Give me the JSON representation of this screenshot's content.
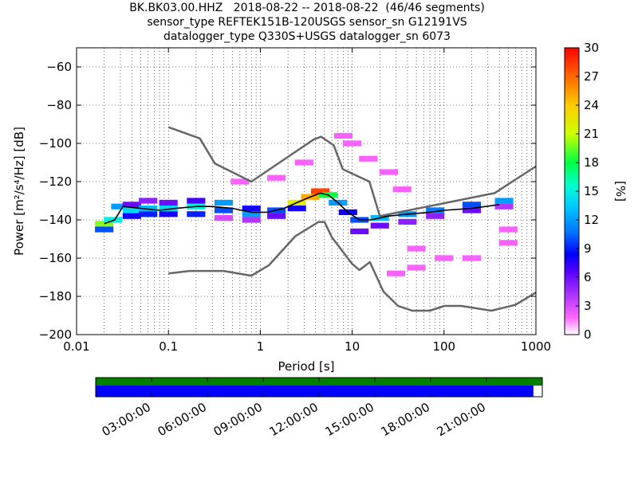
{
  "title": {
    "line1": "BK.BK03.00.HHZ   2018-08-22 -- 2018-08-22  (46/46 segments)",
    "line2": "sensor_type REFTEK151B-120USGS sensor_sn G12191VS",
    "line3": "datalogger_type Q330S+USGS datalogger_sn 6073"
  },
  "colors": {
    "noise_model": "#666666",
    "mean_line": "#000000",
    "timeline_top": "#008000",
    "timeline_bottom": "#0000ff",
    "grid": "#000000"
  },
  "chart_data": {
    "type": "heatmap",
    "xlabel": "Period [s]",
    "ylabel": "Power [m²/s⁴/Hz] [dB]",
    "xscale": "log",
    "xlim": [
      0.01,
      1000
    ],
    "ylim": [
      -200,
      -50
    ],
    "x_ticks": [
      0.01,
      0.1,
      1,
      10,
      100,
      1000
    ],
    "x_tick_labels": [
      "0.01",
      "0.1",
      "1",
      "10",
      "100",
      "1000"
    ],
    "y_ticks": [
      -200,
      -180,
      -160,
      -140,
      -120,
      -100,
      -80,
      -60
    ],
    "y_tick_labels": [
      "−200",
      "−180",
      "−160",
      "−140",
      "−120",
      "−100",
      "−80",
      "−60"
    ],
    "grid": true,
    "colorbar": {
      "label": "[%]",
      "range": [
        0,
        30
      ],
      "ticks": [
        0,
        3,
        6,
        9,
        12,
        15,
        18,
        21,
        24,
        27,
        30
      ],
      "colormap": "pqlx"
    },
    "noise_models": [
      {
        "name": "NHNM",
        "points": [
          [
            0.1,
            -91.5
          ],
          [
            0.22,
            -97.4
          ],
          [
            0.32,
            -110.5
          ],
          [
            0.8,
            -120
          ],
          [
            3.8,
            -98
          ],
          [
            4.6,
            -96.5
          ],
          [
            6.3,
            -101
          ],
          [
            7.9,
            -113.5
          ],
          [
            15.4,
            -120
          ],
          [
            20,
            -138
          ],
          [
            354.8,
            -126
          ],
          [
            1000,
            -112
          ]
        ]
      },
      {
        "name": "NLNM",
        "points": [
          [
            0.1,
            -168
          ],
          [
            0.17,
            -166.7
          ],
          [
            0.4,
            -166.7
          ],
          [
            0.8,
            -169.2
          ],
          [
            1.24,
            -163.7
          ],
          [
            2.4,
            -148.6
          ],
          [
            4.3,
            -141.1
          ],
          [
            5,
            -141.1
          ],
          [
            6,
            -149
          ],
          [
            10,
            -163
          ],
          [
            12,
            -166.2
          ],
          [
            15.6,
            -162.1
          ],
          [
            21.9,
            -177.5
          ],
          [
            31.6,
            -185
          ],
          [
            45,
            -187.5
          ],
          [
            70,
            -187.5
          ],
          [
            101,
            -185
          ],
          [
            154,
            -185
          ],
          [
            328,
            -187.5
          ],
          [
            600,
            -184.4
          ],
          [
            1000,
            -178
          ]
        ]
      }
    ],
    "mean_curve": [
      [
        0.02,
        -142
      ],
      [
        0.026,
        -140
      ],
      [
        0.032,
        -133
      ],
      [
        0.05,
        -134
      ],
      [
        0.08,
        -135
      ],
      [
        0.12,
        -134
      ],
      [
        0.2,
        -133
      ],
      [
        0.3,
        -133
      ],
      [
        0.5,
        -134
      ],
      [
        0.8,
        -136
      ],
      [
        1.2,
        -136
      ],
      [
        1.8,
        -134
      ],
      [
        2.5,
        -131
      ],
      [
        3.5,
        -128
      ],
      [
        4.5,
        -126
      ],
      [
        5.5,
        -127
      ],
      [
        7,
        -131
      ],
      [
        9,
        -136
      ],
      [
        12,
        -140
      ],
      [
        16,
        -140
      ],
      [
        25,
        -138
      ],
      [
        40,
        -137
      ],
      [
        70,
        -136
      ],
      [
        100,
        -135
      ],
      [
        200,
        -134
      ],
      [
        400,
        -132
      ]
    ],
    "percent_occurrence": [
      {
        "period": 0.02,
        "db": -142,
        "percent": 20
      },
      {
        "period": 0.02,
        "db": -145,
        "percent": 10
      },
      {
        "period": 0.025,
        "db": -140,
        "percent": 15
      },
      {
        "period": 0.03,
        "db": -133,
        "percent": 12
      },
      {
        "period": 0.04,
        "db": -132,
        "percent": 6
      },
      {
        "period": 0.04,
        "db": -135,
        "percent": 14
      },
      {
        "period": 0.04,
        "db": -138,
        "percent": 8
      },
      {
        "period": 0.06,
        "db": -130,
        "percent": 5
      },
      {
        "period": 0.06,
        "db": -134,
        "percent": 13
      },
      {
        "period": 0.06,
        "db": -137,
        "percent": 9
      },
      {
        "period": 0.1,
        "db": -131,
        "percent": 6
      },
      {
        "period": 0.1,
        "db": -134,
        "percent": 14
      },
      {
        "period": 0.1,
        "db": -137,
        "percent": 8
      },
      {
        "period": 0.2,
        "db": -130,
        "percent": 7
      },
      {
        "period": 0.2,
        "db": -133,
        "percent": 15
      },
      {
        "period": 0.2,
        "db": -137,
        "percent": 9
      },
      {
        "period": 0.4,
        "db": -131,
        "percent": 12
      },
      {
        "period": 0.4,
        "db": -135,
        "percent": 10
      },
      {
        "period": 0.4,
        "db": -139,
        "percent": 3
      },
      {
        "period": 0.8,
        "db": -134,
        "percent": 8
      },
      {
        "period": 0.8,
        "db": -137,
        "percent": 12
      },
      {
        "period": 0.8,
        "db": -140,
        "percent": 4
      },
      {
        "period": 1.5,
        "db": -135,
        "percent": 10
      },
      {
        "period": 1.5,
        "db": -138,
        "percent": 6
      },
      {
        "period": 2.5,
        "db": -131,
        "percent": 22
      },
      {
        "period": 2.5,
        "db": -134,
        "percent": 8
      },
      {
        "period": 3.5,
        "db": -128,
        "percent": 25
      },
      {
        "period": 4.5,
        "db": -125,
        "percent": 28
      },
      {
        "period": 5.5,
        "db": -127,
        "percent": 18
      },
      {
        "period": 7,
        "db": -131,
        "percent": 12
      },
      {
        "period": 9,
        "db": -136,
        "percent": 8
      },
      {
        "period": 12,
        "db": -140,
        "percent": 10
      },
      {
        "period": 12,
        "db": -146,
        "percent": 6
      },
      {
        "period": 20,
        "db": -139,
        "percent": 13
      },
      {
        "period": 20,
        "db": -143,
        "percent": 6
      },
      {
        "period": 40,
        "db": -137,
        "percent": 12
      },
      {
        "period": 40,
        "db": -141,
        "percent": 5
      },
      {
        "period": 80,
        "db": -135,
        "percent": 11
      },
      {
        "period": 80,
        "db": -138,
        "percent": 5
      },
      {
        "period": 200,
        "db": -132,
        "percent": 10
      },
      {
        "period": 200,
        "db": -135,
        "percent": 6
      },
      {
        "period": 450,
        "db": -130,
        "percent": 12
      },
      {
        "period": 450,
        "db": -133,
        "percent": 4
      },
      {
        "period": 8,
        "db": -96,
        "percent": 2
      },
      {
        "period": 10,
        "db": -100,
        "percent": 2
      },
      {
        "period": 15,
        "db": -108,
        "percent": 2
      },
      {
        "period": 25,
        "db": -115,
        "percent": 2
      },
      {
        "period": 35,
        "db": -124,
        "percent": 2
      },
      {
        "period": 3,
        "db": -110,
        "percent": 2
      },
      {
        "period": 1.5,
        "db": -118,
        "percent": 2
      },
      {
        "period": 0.6,
        "db": -120,
        "percent": 2
      },
      {
        "period": 50,
        "db": -155,
        "percent": 2
      },
      {
        "period": 50,
        "db": -165,
        "percent": 2
      },
      {
        "period": 100,
        "db": -160,
        "percent": 2
      },
      {
        "period": 200,
        "db": -160,
        "percent": 2
      },
      {
        "period": 30,
        "db": -168,
        "percent": 2
      },
      {
        "period": 500,
        "db": -152,
        "percent": 2
      },
      {
        "period": 500,
        "db": -145,
        "percent": 2
      }
    ],
    "timeline": {
      "tick_labels": [
        "03:00:00",
        "06:00:00",
        "09:00:00",
        "12:00:00",
        "15:00:00",
        "18:00:00",
        "21:00:00"
      ],
      "tick_hours": [
        3,
        6,
        9,
        12,
        15,
        18,
        21
      ],
      "range_hours": [
        0,
        24
      ],
      "coverage_top_fraction": 1.0,
      "coverage_bottom_fraction": 0.98
    }
  }
}
